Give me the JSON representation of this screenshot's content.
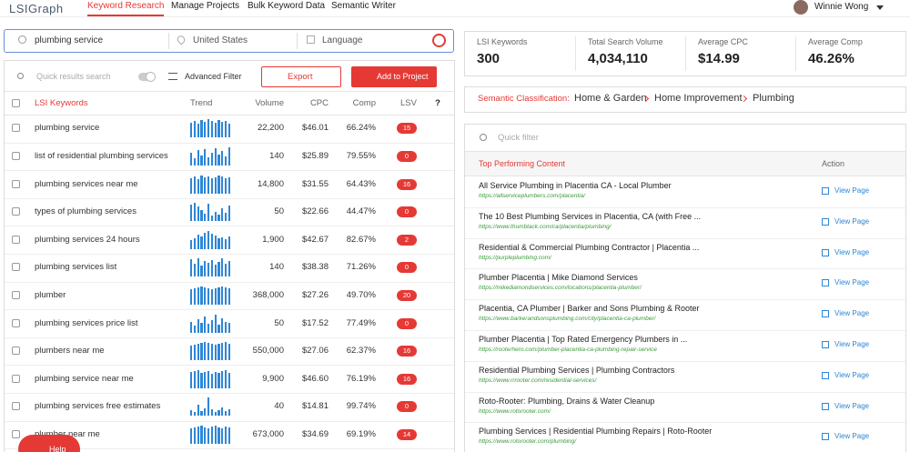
{
  "nav": {
    "logo": "LSIGraph",
    "tabs": [
      "Keyword Research",
      "Manage Projects",
      "Bulk Keyword Data",
      "Semantic Writer"
    ],
    "user": "Winnie Wong"
  },
  "search": {
    "keyword": "plumbing service",
    "location": "United States",
    "language": "Language"
  },
  "toolbar": {
    "search_placeholder": "Quick results search",
    "filter": "Advanced Filter",
    "export": "Export",
    "add": "Add to Project"
  },
  "table": {
    "headers": [
      "LSI Keywords",
      "Trend",
      "Volume",
      "CPC",
      "Comp",
      "LSV",
      "?"
    ],
    "rows": [
      {
        "keyword": "plumbing service",
        "trend": [
          80,
          90,
          75,
          95,
          85,
          100,
          90,
          80,
          95,
          85,
          90,
          75
        ],
        "volume": "22,200",
        "cpc": "$46.01",
        "comp": "66.24%",
        "lsv": "15"
      },
      {
        "keyword": "list of residential plumbing services",
        "trend": [
          70,
          40,
          85,
          55,
          90,
          45,
          70,
          95,
          60,
          80,
          50,
          100
        ],
        "volume": "140",
        "cpc": "$25.89",
        "comp": "79.55%",
        "lsv": "0"
      },
      {
        "keyword": "plumbing services near me",
        "trend": [
          85,
          95,
          80,
          100,
          90,
          95,
          85,
          90,
          100,
          95,
          85,
          90
        ],
        "volume": "14,800",
        "cpc": "$31.55",
        "comp": "64.43%",
        "lsv": "16"
      },
      {
        "keyword": "types of plumbing services",
        "trend": [
          90,
          100,
          80,
          60,
          40,
          95,
          30,
          50,
          35,
          70,
          45,
          85
        ],
        "volume": "50",
        "cpc": "$22.66",
        "comp": "44.47%",
        "lsv": "0"
      },
      {
        "keyword": "plumbing services 24 hours",
        "trend": [
          50,
          60,
          80,
          70,
          90,
          100,
          85,
          75,
          60,
          65,
          55,
          70
        ],
        "volume": "1,900",
        "cpc": "$42.67",
        "comp": "82.67%",
        "lsv": "2"
      },
      {
        "keyword": "plumbing services list",
        "trend": [
          95,
          70,
          100,
          60,
          85,
          75,
          90,
          65,
          80,
          100,
          70,
          85
        ],
        "volume": "140",
        "cpc": "$38.38",
        "comp": "71.26%",
        "lsv": "0"
      },
      {
        "keyword": "plumber",
        "trend": [
          85,
          90,
          95,
          100,
          95,
          90,
          85,
          90,
          95,
          100,
          95,
          90
        ],
        "volume": "368,000",
        "cpc": "$27.26",
        "comp": "49.70%",
        "lsv": "20"
      },
      {
        "keyword": "plumbing services price list",
        "trend": [
          60,
          40,
          75,
          55,
          90,
          50,
          70,
          100,
          45,
          80,
          60,
          55
        ],
        "volume": "50",
        "cpc": "$17.52",
        "comp": "77.49%",
        "lsv": "0"
      },
      {
        "keyword": "plumbers near me",
        "trend": [
          80,
          85,
          90,
          95,
          100,
          95,
          90,
          85,
          90,
          95,
          100,
          90
        ],
        "volume": "550,000",
        "cpc": "$27.06",
        "comp": "62.37%",
        "lsv": "16"
      },
      {
        "keyword": "plumbing service near me",
        "trend": [
          90,
          95,
          100,
          85,
          90,
          95,
          80,
          90,
          85,
          95,
          100,
          85
        ],
        "volume": "9,900",
        "cpc": "$46.60",
        "comp": "76.19%",
        "lsv": "16"
      },
      {
        "keyword": "plumbing services free estimates",
        "trend": [
          30,
          20,
          60,
          25,
          40,
          100,
          35,
          20,
          30,
          45,
          25,
          35
        ],
        "volume": "40",
        "cpc": "$14.81",
        "comp": "99.74%",
        "lsv": "0"
      },
      {
        "keyword": "plumber near me",
        "trend": [
          85,
          90,
          95,
          100,
          90,
          85,
          95,
          100,
          90,
          85,
          95,
          90
        ],
        "volume": "673,000",
        "cpc": "$34.69",
        "comp": "69.19%",
        "lsv": "14"
      }
    ]
  },
  "help": "Help",
  "stats": [
    {
      "label": "LSI Keywords",
      "value": "300"
    },
    {
      "label": "Total Search Volume",
      "value": "4,034,110"
    },
    {
      "label": "Average CPC",
      "value": "$14.99"
    },
    {
      "label": "Average Comp",
      "value": "46.26%"
    }
  ],
  "classification": {
    "label": "Semantic Classification:",
    "path": [
      "Home & Garden",
      "Home Improvement",
      "Plumbing"
    ]
  },
  "content": {
    "filter_placeholder": "Quick filter",
    "headers": [
      "Top Performing Content",
      "Action"
    ],
    "rows": [
      {
        "title": "All Service Plumbing in Placentia CA - Local Plumber",
        "url": "https://allserviceplumbers.com/placentia/",
        "action": "View Page"
      },
      {
        "title": "The 10 Best Plumbing Services in Placentia, CA (with Free ...",
        "url": "https://www.thumbtack.com/ca/placentia/plumbing/",
        "action": "View Page"
      },
      {
        "title": "Residential & Commercial Plumbing Contractor | Placentia ...",
        "url": "https://purpleplumbing.com/",
        "action": "View Page"
      },
      {
        "title": "Plumber Placentia | Mike Diamond Services",
        "url": "https://mikediamondservices.com/locations/placentia-plumber/",
        "action": "View Page"
      },
      {
        "title": "Placentia, CA Plumber | Barker and Sons Plumbing & Rooter",
        "url": "https://www.barkerandsonsplumbing.com/city/placentia-ca-plumber/",
        "action": "View Page"
      },
      {
        "title": "Plumber Placentia | Top Rated Emergency Plumbers in ...",
        "url": "https://rooterhero.com/plumber-placentia-ca-plumbing-repair-service",
        "action": "View Page"
      },
      {
        "title": "Residential Plumbing Services | Plumbing Contractors",
        "url": "https://www.rrrooter.com/residential-services/",
        "action": "View Page"
      },
      {
        "title": "Roto-Rooter: Plumbing, Drains & Water Cleanup",
        "url": "https://www.rotorooter.com/",
        "action": "View Page"
      },
      {
        "title": "Plumbing Services | Residential Plumbing Repairs | Roto-Rooter",
        "url": "https://www.rotorooter.com/plumbing/",
        "action": "View Page"
      }
    ]
  }
}
